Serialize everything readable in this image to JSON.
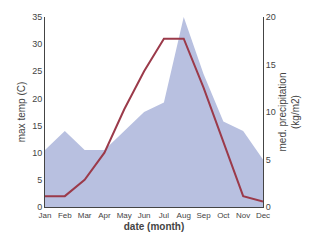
{
  "chart_data": {
    "type": "line",
    "categories": [
      "Jan",
      "Feb",
      "Mar",
      "Apr",
      "May",
      "Jun",
      "Jul",
      "Aug",
      "Sep",
      "Oct",
      "Nov",
      "Dec"
    ],
    "series": [
      {
        "type": "area",
        "color": "#b8c0e0",
        "axis": "y2",
        "values": [
          6,
          8,
          6,
          6,
          8,
          10,
          11,
          20,
          14,
          9,
          8,
          5
        ]
      },
      {
        "type": "line",
        "color": "#9b3a4a",
        "values": [
          2,
          2,
          5,
          10,
          18,
          25,
          31,
          31,
          22,
          12,
          2,
          1
        ]
      }
    ],
    "xlabel": "date (month)",
    "ylabel": "max temp (C)",
    "y2label": "med. precipitation\n(kg/m2)",
    "ylim": [
      0,
      35
    ],
    "yticks": [
      0,
      5,
      10,
      15,
      20,
      25,
      30,
      35
    ],
    "y2lim": [
      0,
      20
    ],
    "y2ticks": [
      0,
      5,
      10,
      15,
      20
    ],
    "grid": false,
    "background_color": "#ffffff"
  }
}
